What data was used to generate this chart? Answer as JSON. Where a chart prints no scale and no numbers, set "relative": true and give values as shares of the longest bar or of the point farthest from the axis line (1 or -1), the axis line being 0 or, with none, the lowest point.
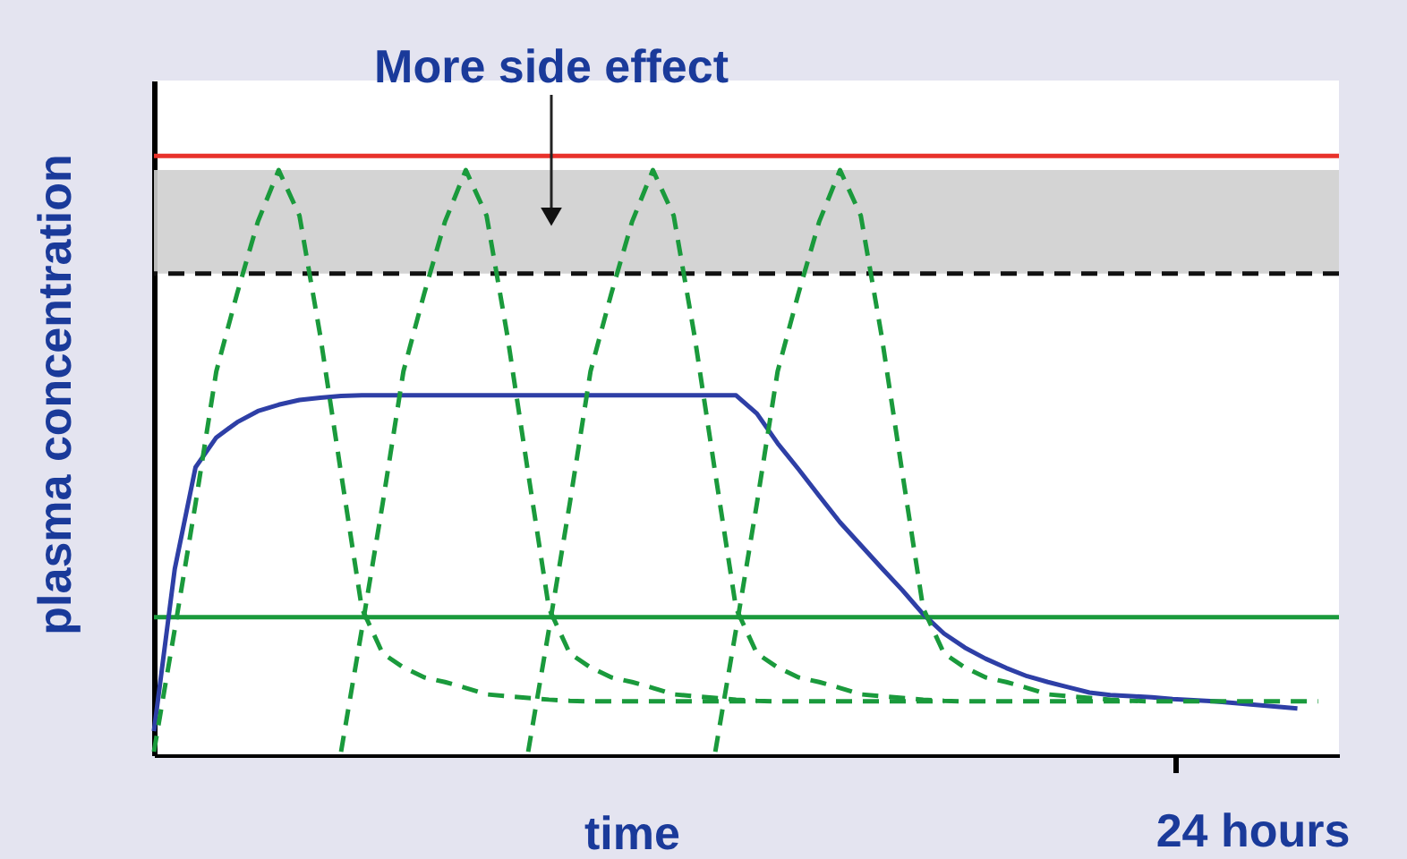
{
  "chart_data": {
    "type": "line",
    "relative": true,
    "xlabel": "time",
    "ylabel": "plasma concentration",
    "categories": [
      null,
      null,
      null,
      null,
      null,
      null,
      null,
      null,
      null,
      null,
      null,
      null,
      null,
      null,
      null,
      null,
      null,
      null,
      null,
      null,
      null,
      null,
      null,
      null,
      null,
      null,
      null,
      null,
      null,
      null,
      null,
      null,
      null,
      null,
      null,
      null,
      null,
      null,
      null,
      null,
      null,
      null,
      null,
      null,
      null,
      null,
      null,
      null,
      null,
      null,
      null,
      null,
      null,
      null,
      null,
      null,
      null,
      null
    ],
    "series": [
      {
        "color": "#2e3fa6",
        "line_style": "solid",
        "values": [
          0.041,
          0.318,
          0.492,
          0.543,
          0.569,
          0.588,
          0.599,
          0.607,
          0.611,
          0.614,
          0.615,
          0.615,
          0.615,
          0.615,
          0.615,
          0.615,
          0.615,
          0.615,
          0.615,
          0.615,
          0.615,
          0.615,
          0.615,
          0.615,
          0.615,
          0.615,
          0.615,
          0.615,
          0.615,
          0.584,
          0.533,
          0.489,
          0.443,
          0.398,
          0.359,
          0.32,
          0.282,
          0.241,
          0.208,
          0.184,
          0.165,
          0.149,
          0.135,
          0.125,
          0.116,
          0.107,
          0.103,
          0.101,
          0.099,
          0.096,
          0.094,
          0.092,
          0.089,
          0.086,
          0.083,
          0.08,
          null,
          null
        ]
      },
      {
        "color": "#1a9a3c",
        "line_style": "dashed",
        "values": [
          0.006,
          0.215,
          0.43,
          0.656,
          0.789,
          0.912,
          1,
          0.922,
          0.717,
          0.482,
          0.251,
          0.174,
          0.15,
          0.133,
          0.125,
          0.115,
          0.104,
          0.101,
          0.098,
          0.095,
          0.093,
          0.092,
          0.092,
          0.092,
          0.092,
          0.092,
          0.092,
          0.092,
          0.092,
          0.092,
          null,
          null,
          null,
          null,
          null,
          null,
          null,
          null,
          null,
          null,
          null,
          null,
          null,
          null,
          null,
          null,
          null,
          null,
          null,
          null,
          null,
          null,
          null,
          null,
          null,
          null,
          null,
          null
        ]
      },
      {
        "color": "#1a9a3c",
        "line_style": "dashed",
        "values": [
          null,
          null,
          null,
          null,
          null,
          null,
          null,
          null,
          null,
          0.006,
          0.215,
          0.43,
          0.656,
          0.789,
          0.912,
          1,
          0.922,
          0.717,
          0.482,
          0.251,
          0.174,
          0.15,
          0.133,
          0.125,
          0.115,
          0.104,
          0.101,
          0.098,
          0.095,
          0.093,
          0.092,
          0.092,
          0.092,
          0.092,
          0.092,
          0.092,
          0.092,
          0.092,
          0.092,
          null,
          null,
          null,
          null,
          null,
          null,
          null,
          null,
          null,
          null,
          null,
          null,
          null,
          null,
          null,
          null,
          null,
          null,
          null
        ]
      },
      {
        "color": "#1a9a3c",
        "line_style": "dashed",
        "values": [
          null,
          null,
          null,
          null,
          null,
          null,
          null,
          null,
          null,
          null,
          null,
          null,
          null,
          null,
          null,
          null,
          null,
          null,
          0.006,
          0.215,
          0.43,
          0.656,
          0.789,
          0.912,
          1,
          0.922,
          0.717,
          0.482,
          0.251,
          0.174,
          0.15,
          0.133,
          0.125,
          0.115,
          0.104,
          0.101,
          0.098,
          0.095,
          0.093,
          0.092,
          0.092,
          0.092,
          0.092,
          0.092,
          0.092,
          0.092,
          0.092,
          0.092,
          null,
          null,
          null,
          null,
          null,
          null,
          null,
          null,
          null,
          null
        ]
      },
      {
        "color": "#1a9a3c",
        "line_style": "dashed",
        "values": [
          null,
          null,
          null,
          null,
          null,
          null,
          null,
          null,
          null,
          null,
          null,
          null,
          null,
          null,
          null,
          null,
          null,
          null,
          null,
          null,
          null,
          null,
          null,
          null,
          null,
          null,
          null,
          0.006,
          0.215,
          0.43,
          0.656,
          0.789,
          0.912,
          1,
          0.922,
          0.717,
          0.482,
          0.251,
          0.174,
          0.15,
          0.133,
          0.125,
          0.115,
          0.104,
          0.101,
          0.098,
          0.095,
          0.093,
          0.092,
          0.092,
          0.092,
          0.092,
          0.092,
          0.092,
          0.092,
          0.092,
          0.092,
          null
        ]
      }
    ],
    "ref_lines": [
      {
        "axis": "y",
        "value": 1.024,
        "color": "#e8322b",
        "line_style": "solid"
      },
      {
        "axis": "y",
        "value": 0.823,
        "color": "#111111",
        "line_style": "dashed"
      },
      {
        "axis": "y",
        "value": 0.236,
        "color": "#1a9a3c",
        "line_style": "solid"
      }
    ],
    "bands": [
      {
        "axis": "y",
        "from": 0.823,
        "to": 1,
        "color": "#cfcfcf"
      }
    ],
    "annotations": [
      {
        "text": "More side effect",
        "y": 0.92
      },
      "24 hours"
    ]
  }
}
